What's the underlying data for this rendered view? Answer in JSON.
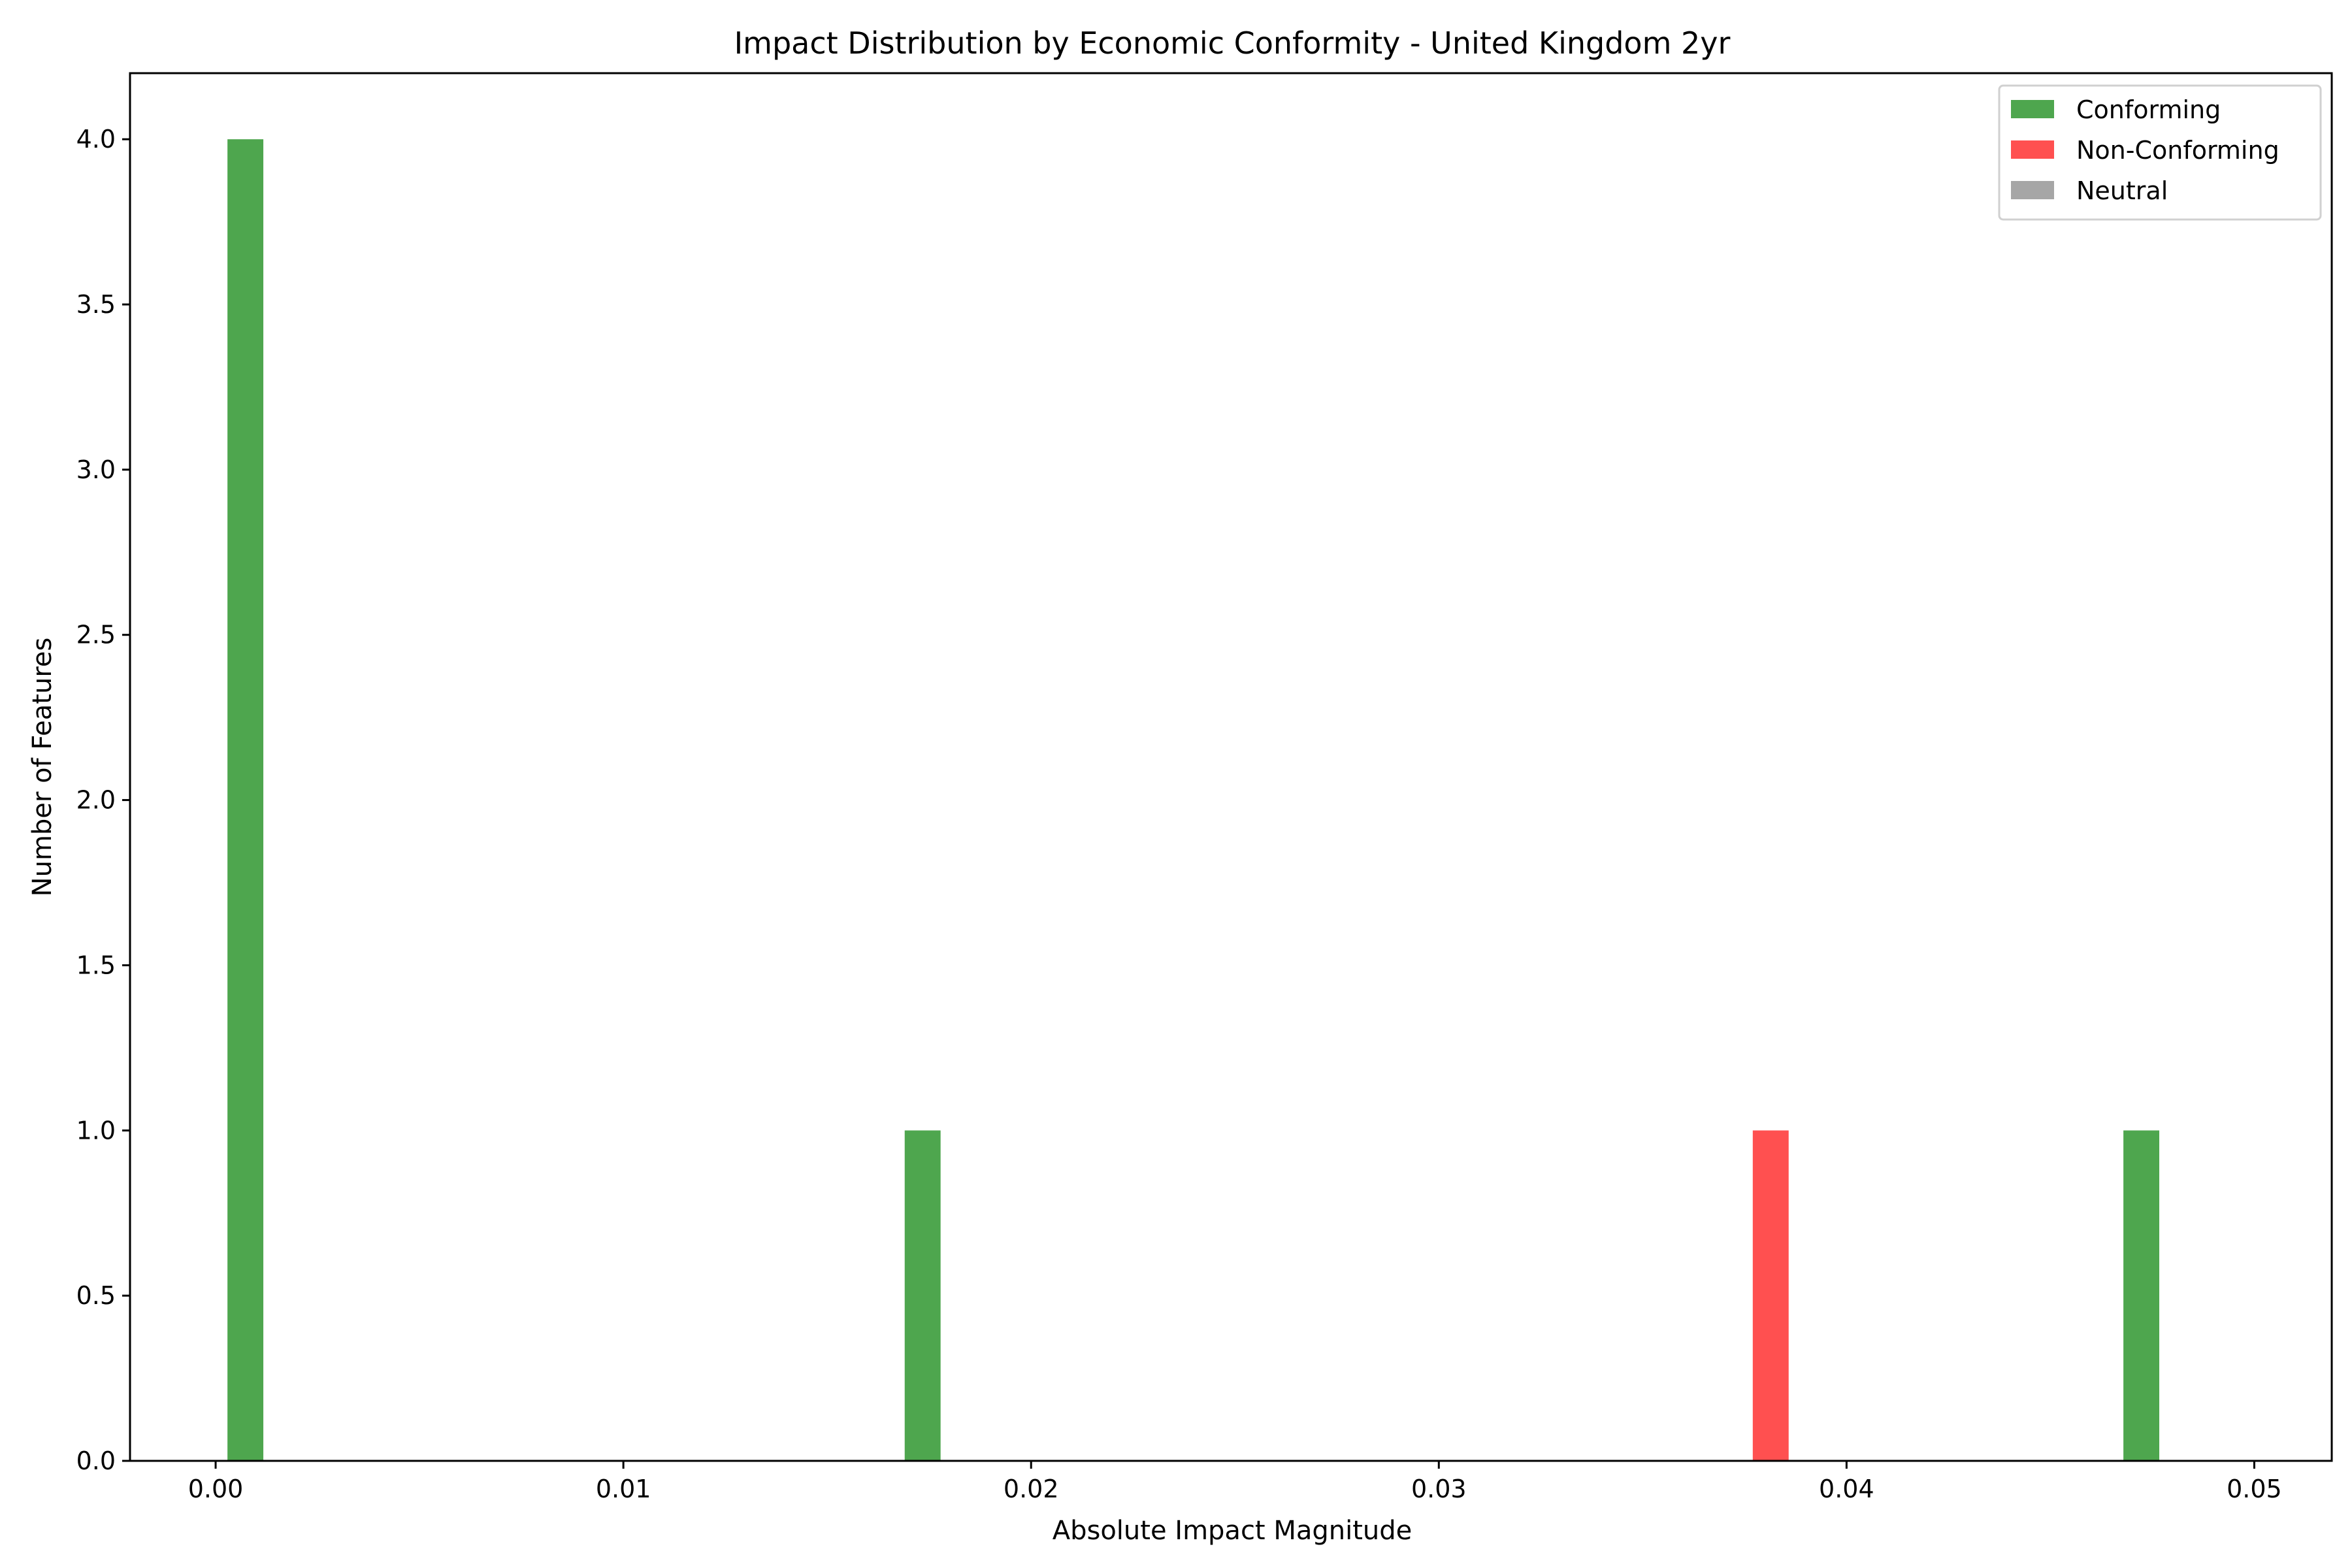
{
  "chart_data": {
    "type": "bar",
    "title": "Impact Distribution by Economic Conformity - United Kingdom 2yr",
    "xlabel": "Absolute Impact Magnitude",
    "ylabel": "Number of Features",
    "xlim": [
      -0.0021,
      0.0519
    ],
    "ylim": [
      0,
      4.2
    ],
    "bin_width": 0.00088,
    "xticks": [
      0.0,
      0.01,
      0.02,
      0.03,
      0.04,
      0.05
    ],
    "xtick_labels": [
      "0.00",
      "0.01",
      "0.02",
      "0.03",
      "0.04",
      "0.05"
    ],
    "yticks": [
      0.0,
      0.5,
      1.0,
      1.5,
      2.0,
      2.5,
      3.0,
      3.5,
      4.0
    ],
    "ytick_labels": [
      "0.0",
      "0.5",
      "1.0",
      "1.5",
      "2.0",
      "2.5",
      "3.0",
      "3.5",
      "4.0"
    ],
    "grid": false,
    "legend_position": "top-right",
    "series": [
      {
        "name": "Conforming",
        "color": "#4ea64e",
        "bars": [
          {
            "x0": 0.00029,
            "count": 4
          },
          {
            "x0": 0.0169,
            "count": 1
          },
          {
            "x0": 0.04679,
            "count": 1
          }
        ]
      },
      {
        "name": "Non-Conforming",
        "color": "#ff5050",
        "bars": [
          {
            "x0": 0.0377,
            "count": 1
          }
        ]
      },
      {
        "name": "Neutral",
        "color": "#a6a6a6",
        "bars": []
      }
    ]
  }
}
